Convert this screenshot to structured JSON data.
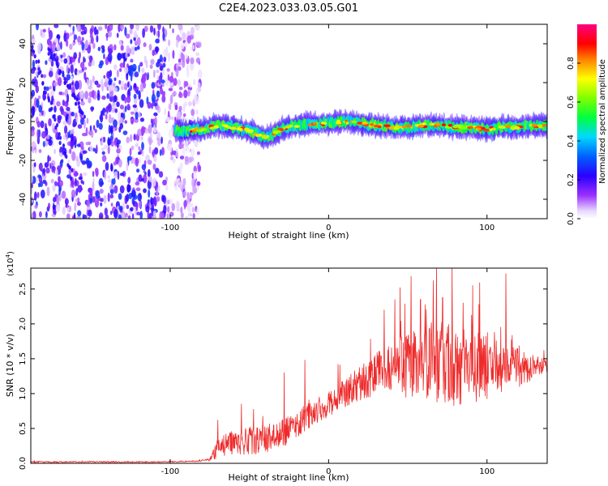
{
  "title": "C2E4.2023.033.03.05.G01",
  "colors": {
    "snr_line": "#ee2b2b",
    "ridge_high": "#ff0000",
    "ridge_mid": "#00ff66",
    "noise": "#6a1aff"
  },
  "chart_data": [
    {
      "type": "heatmap",
      "xlabel": "Height of straight line (km)",
      "ylabel": "Frequency (Hz)",
      "xlim": [
        -188,
        138
      ],
      "ylim": [
        -50,
        50
      ],
      "x_ticks": [
        {
          "value": -100,
          "label": "-100"
        },
        {
          "value": 0,
          "label": "0"
        },
        {
          "value": 100,
          "label": "100"
        }
      ],
      "y_ticks": [
        {
          "value": 40,
          "label": "40"
        },
        {
          "value": 20,
          "label": "20"
        },
        {
          "value": 0,
          "label": "0"
        },
        {
          "value": -20,
          "label": "-20"
        },
        {
          "value": -40,
          "label": "-40"
        }
      ],
      "noise_region_x": [
        -188,
        -85
      ],
      "ridge_x": [
        -97,
        -80,
        -70,
        -60,
        -50,
        -40,
        -35,
        -30,
        -20,
        -10,
        0,
        10,
        20,
        30,
        40,
        50,
        60,
        70,
        80,
        90,
        100,
        110,
        120,
        130,
        138
      ],
      "ridge_freq": [
        -5,
        -4,
        -2,
        -3,
        -5,
        -8,
        -7,
        -4,
        -2,
        -1,
        -1,
        0,
        -1,
        -2,
        -3,
        -3,
        -2,
        -2,
        -3,
        -3,
        -4,
        -3,
        -3,
        -2,
        -2
      ],
      "colorbar": {
        "label": "Normalized spectral amplitude",
        "range": [
          0.0,
          1.0
        ],
        "ticks": [
          {
            "value": 0.0,
            "label": "0.0"
          },
          {
            "value": 0.2,
            "label": "0.2"
          },
          {
            "value": 0.4,
            "label": "0.4"
          },
          {
            "value": 0.6,
            "label": "0.6"
          },
          {
            "value": 0.8,
            "label": "0.8"
          }
        ]
      }
    },
    {
      "type": "line",
      "xlabel": "Height of straight line (km)",
      "ylabel": "SNR (10 * v/v)",
      "y_multiplier": "(x10",
      "y_multiplier_exp": "4",
      "y_multiplier_close": ")",
      "xlim": [
        -188,
        138
      ],
      "ylim": [
        0,
        2.8
      ],
      "x_ticks": [
        {
          "value": -100,
          "label": "-100"
        },
        {
          "value": 0,
          "label": "0"
        },
        {
          "value": 100,
          "label": "100"
        }
      ],
      "y_ticks": [
        {
          "value": 0.0,
          "label": "0.0"
        },
        {
          "value": 0.5,
          "label": "0.5"
        },
        {
          "value": 1.0,
          "label": "1.0"
        },
        {
          "value": 1.5,
          "label": "1.5"
        },
        {
          "value": 2.0,
          "label": "2.0"
        },
        {
          "value": 2.5,
          "label": "2.5"
        }
      ],
      "series": [
        {
          "trend_x": [
            -188,
            -110,
            -85,
            -75,
            -70,
            -60,
            -50,
            -40,
            -30,
            -20,
            -10,
            0,
            10,
            20,
            30,
            40,
            50,
            60,
            70,
            80,
            90,
            100,
            110,
            120,
            130,
            138
          ],
          "trend_y": [
            0.02,
            0.02,
            0.03,
            0.05,
            0.22,
            0.3,
            0.32,
            0.35,
            0.42,
            0.55,
            0.72,
            0.85,
            1.0,
            1.15,
            1.28,
            1.38,
            1.42,
            1.45,
            1.45,
            1.42,
            1.4,
            1.4,
            1.38,
            1.36,
            1.38,
            1.4
          ],
          "spread_y": [
            0.01,
            0.01,
            0.01,
            0.02,
            0.15,
            0.18,
            0.2,
            0.2,
            0.2,
            0.2,
            0.18,
            0.18,
            0.2,
            0.25,
            0.3,
            0.38,
            0.48,
            0.55,
            0.6,
            0.6,
            0.55,
            0.48,
            0.4,
            0.3,
            0.15,
            0.1
          ],
          "peaks_x": [
            -70,
            -55,
            -28,
            -15,
            35,
            45,
            52,
            58,
            66,
            72,
            78,
            85,
            91,
            95,
            105,
            112
          ],
          "peaks_y": [
            0.62,
            0.85,
            1.3,
            1.48,
            2.2,
            2.52,
            2.68,
            2.35,
            2.62,
            2.38,
            2.82,
            2.3,
            2.55,
            2.28,
            1.68,
            2.72
          ]
        }
      ]
    }
  ]
}
